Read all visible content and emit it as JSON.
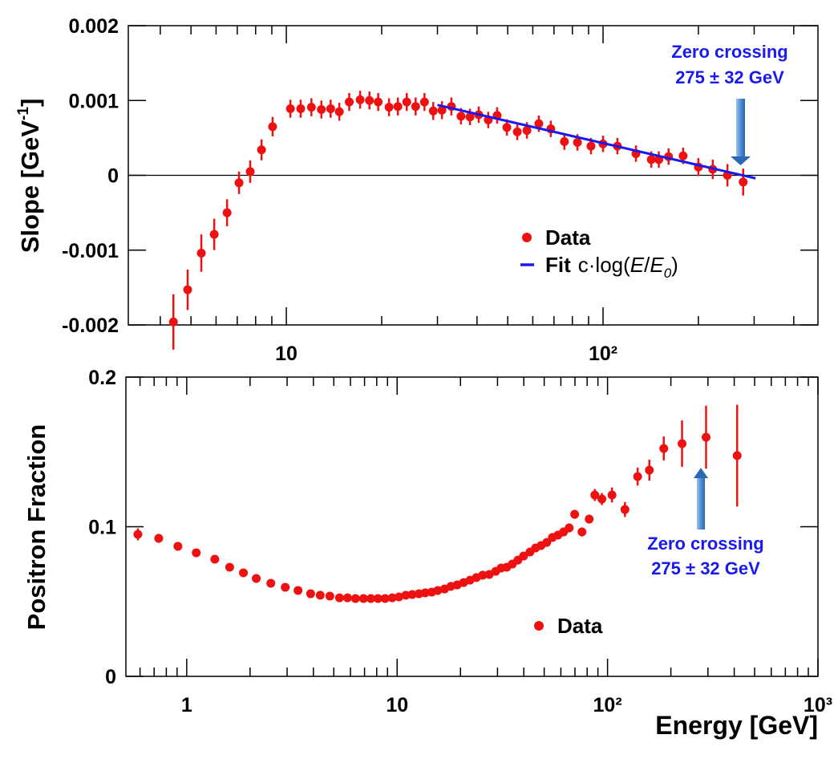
{
  "chart_data": [
    {
      "type": "scatter",
      "xlog": true,
      "xlim": [
        3.17,
        477
      ],
      "ylim": [
        -0.002,
        0.002
      ],
      "xticks": [
        10,
        {
          "value": 100,
          "label": "10²"
        }
      ],
      "xminorticks": [
        4,
        5,
        6,
        7,
        8,
        9,
        20,
        30,
        40,
        50,
        60,
        70,
        80,
        90,
        200,
        300,
        400
      ],
      "yticks": [
        0.002,
        0.001,
        0,
        -0.001,
        -0.002
      ],
      "zero_line": true,
      "y_label": {
        "text": "Slope [GeV",
        "superscript": "-1",
        "end": "]"
      },
      "series": [
        {
          "name": "Data",
          "type": "points",
          "color": "#ee1111",
          "x": [
            4.4,
            4.88,
            5.39,
            5.92,
            6.5,
            7.09,
            7.69,
            8.35,
            9.05,
            10.3,
            11.1,
            12.0,
            12.9,
            13.8,
            14.7,
            15.8,
            17.1,
            18.3,
            19.5,
            21.1,
            22.5,
            24.0,
            25.6,
            27.3,
            29.1,
            31.0,
            33.2,
            35.6,
            38.0,
            40.5,
            43.4,
            46.3,
            49.7,
            53.6,
            57.5,
            62.7,
            68.4,
            75.5,
            83.0,
            91.6,
            100,
            111,
            127,
            142,
            150,
            161,
            179,
            200,
            222,
            247,
            277
          ],
          "values": [
            -0.00196,
            -0.00153,
            -0.00104,
            -0.00079,
            -0.0005,
            -0.0001,
            5e-05,
            0.00034,
            0.00065,
            0.00089,
            0.00089,
            0.00091,
            0.00088,
            0.00089,
            0.00085,
            0.00098,
            0.00101,
            0.001,
            0.00098,
            0.00091,
            0.00092,
            0.00098,
            0.00092,
            0.00098,
            0.00086,
            0.00087,
            0.00092,
            0.00079,
            0.00078,
            0.00081,
            0.00074,
            0.0008,
            0.00064,
            0.00058,
            0.0006,
            0.00069,
            0.00062,
            0.00045,
            0.00044,
            0.00039,
            0.00042,
            0.00039,
            0.00029,
            0.00021,
            0.00021,
            0.00025,
            0.00026,
            0.00011,
            8e-05,
            0,
            -9e-05
          ],
          "errors": [
            0.00037,
            0.00027,
            0.00025,
            0.00021,
            0.00018,
            0.00015,
            0.00015,
            0.00014,
            0.00013,
            0.00012,
            0.00012,
            0.00012,
            0.00012,
            0.00012,
            0.00012,
            0.00012,
            0.00012,
            0.00012,
            0.00012,
            0.00012,
            0.00012,
            0.00012,
            0.00012,
            0.00012,
            0.00012,
            0.00012,
            0.00012,
            0.00011,
            0.00011,
            0.00011,
            0.00011,
            0.00011,
            0.00011,
            0.00011,
            0.00011,
            0.00011,
            0.00011,
            0.00011,
            0.00011,
            0.00011,
            0.00011,
            0.00011,
            0.00011,
            0.00011,
            0.00011,
            0.00011,
            0.00011,
            0.00012,
            0.00013,
            0.00015,
            0.00018
          ]
        },
        {
          "name": "Fit",
          "type": "line",
          "color": "#1a1aee",
          "formula": {
            "prefix": "c·log(",
            "numerator": "E",
            "slash": "/",
            "denominator": "E",
            "subscript": "0",
            "suffix": ")"
          },
          "x": [
            30,
            303
          ],
          "values": [
            0.00094,
            -4e-05
          ]
        }
      ],
      "annotation": {
        "lines": [
          "Zero crossing",
          "275 ± 32 GeV"
        ],
        "color": "#1a1aee"
      }
    },
    {
      "type": "scatter",
      "xlog": true,
      "xlim": [
        0.514,
        1000
      ],
      "ylim": [
        0,
        0.2
      ],
      "xticks": [
        1,
        10,
        {
          "value": 100,
          "label": "10²"
        },
        {
          "value": 1000,
          "label": "10³"
        }
      ],
      "xminorticks": [
        0.6,
        0.7,
        0.8,
        0.9,
        2,
        3,
        4,
        5,
        6,
        7,
        8,
        9,
        20,
        30,
        40,
        50,
        60,
        70,
        80,
        90,
        200,
        300,
        400,
        500,
        600,
        700,
        800,
        900
      ],
      "yticks": [
        0,
        0.1,
        0.2
      ],
      "y_label": {
        "text": "Positron Fraction"
      },
      "x_label": "Energy [GeV]",
      "series": [
        {
          "name": "Data",
          "type": "points",
          "color": "#ee1111",
          "x": [
            0.586,
            0.736,
            0.908,
            1.11,
            1.36,
            1.6,
            1.86,
            2.14,
            2.51,
            2.94,
            3.38,
            3.88,
            4.31,
            4.79,
            5.32,
            5.81,
            6.34,
            6.92,
            7.5,
            8.11,
            8.77,
            9.48,
            10.2,
            11.0,
            11.8,
            12.7,
            13.6,
            14.6,
            15.6,
            16.8,
            18.0,
            19.3,
            20.7,
            22.2,
            23.8,
            25.5,
            27.4,
            29.4,
            31.2,
            33.2,
            35.3,
            37.5,
            39.9,
            42.8,
            45.5,
            48.3,
            51.4,
            54.7,
            58.1,
            61.8,
            65.7,
            69.8,
            75.6,
            81.8,
            87.0,
            94.0,
            105,
            121,
            139,
            158,
            185,
            226,
            294,
            413
          ],
          "values": [
            0.0949,
            0.0922,
            0.0869,
            0.0826,
            0.0783,
            0.0729,
            0.0692,
            0.0654,
            0.0622,
            0.0595,
            0.0574,
            0.0552,
            0.0542,
            0.0536,
            0.0525,
            0.0525,
            0.052,
            0.052,
            0.052,
            0.052,
            0.052,
            0.0525,
            0.0531,
            0.0542,
            0.0547,
            0.0552,
            0.0558,
            0.0563,
            0.0574,
            0.0584,
            0.0601,
            0.0611,
            0.0627,
            0.0643,
            0.066,
            0.0676,
            0.0681,
            0.0702,
            0.0724,
            0.0729,
            0.0751,
            0.0777,
            0.0804,
            0.0831,
            0.0858,
            0.0874,
            0.0895,
            0.0928,
            0.0944,
            0.0965,
            0.0992,
            0.1083,
            0.0965,
            0.1051,
            0.1212,
            0.1185,
            0.1212,
            0.1115,
            0.1335,
            0.1378,
            0.1523,
            0.1555,
            0.1598,
            0.1475
          ],
          "errors": [
            0.004,
            0.003,
            0.002,
            0.002,
            0.002,
            0.001,
            0.001,
            0.001,
            0.001,
            0.001,
            0.001,
            0.001,
            0.001,
            0.001,
            0.001,
            0.001,
            0.001,
            0.001,
            0.001,
            0.001,
            0.001,
            0.001,
            0.001,
            0.001,
            0.001,
            0.001,
            0.001,
            0.001,
            0.001,
            0.001,
            0.001,
            0.001,
            0.001,
            0.001,
            0.001,
            0.001,
            0.001,
            0.001,
            0.001,
            0.001,
            0.002,
            0.002,
            0.002,
            0.002,
            0.002,
            0.002,
            0.002,
            0.002,
            0.002,
            0.003,
            0.003,
            0.003,
            0.003,
            0.003,
            0.004,
            0.004,
            0.005,
            0.005,
            0.006,
            0.007,
            0.008,
            0.0155,
            0.021,
            0.034
          ]
        }
      ],
      "annotation": {
        "lines": [
          "Zero crossing",
          "275 ± 32 GeV"
        ],
        "color": "#1a1aee"
      }
    }
  ]
}
